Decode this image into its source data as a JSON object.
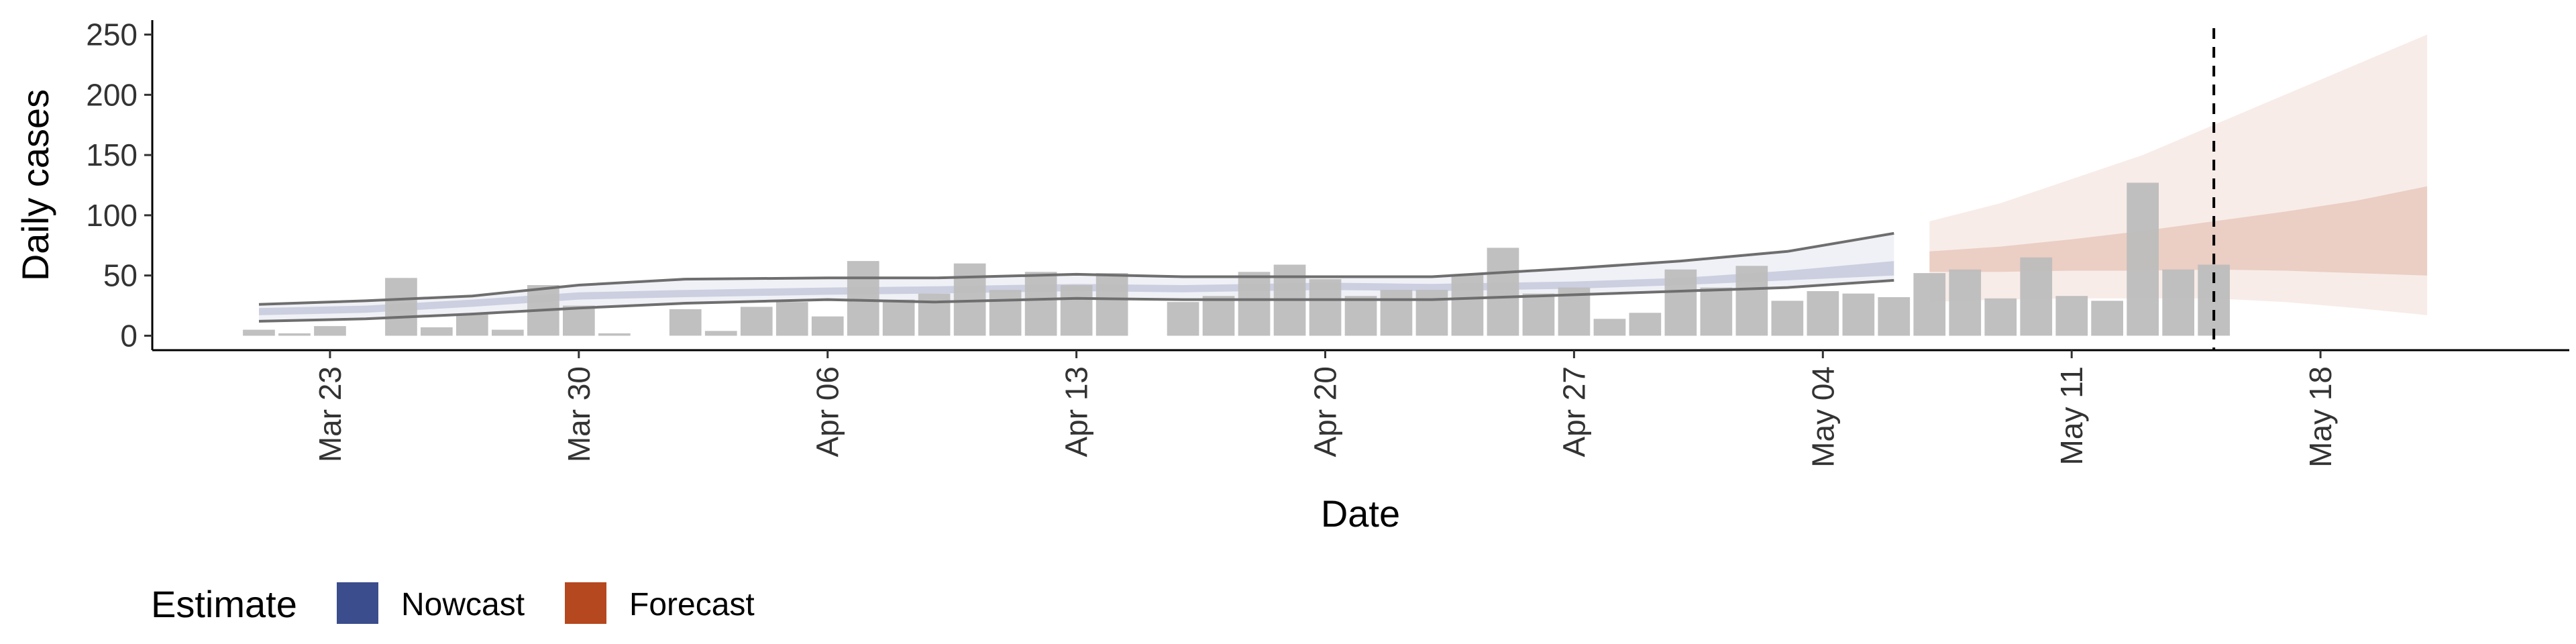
{
  "chart_data": {
    "type": "bar",
    "xlabel": "Date",
    "ylabel": "Daily cases",
    "ylim": [
      -12,
      262
    ],
    "yticks": [
      0,
      50,
      100,
      150,
      200,
      250
    ],
    "xlim": [
      "2020-03-18",
      "2020-05-25"
    ],
    "xticks": [
      {
        "date": "2020-03-23",
        "label": "Mar 23"
      },
      {
        "date": "2020-03-30",
        "label": "Mar 30"
      },
      {
        "date": "2020-04-06",
        "label": "Apr 06"
      },
      {
        "date": "2020-04-13",
        "label": "Apr 13"
      },
      {
        "date": "2020-04-20",
        "label": "Apr 20"
      },
      {
        "date": "2020-04-27",
        "label": "Apr 27"
      },
      {
        "date": "2020-05-04",
        "label": "May 04"
      },
      {
        "date": "2020-05-11",
        "label": "May 11"
      },
      {
        "date": "2020-05-18",
        "label": "May 18"
      }
    ],
    "bar_color": "#bdbdbd",
    "observed": {
      "dates": [
        "2020-03-21",
        "2020-03-22",
        "2020-03-23",
        "2020-03-24",
        "2020-03-25",
        "2020-03-26",
        "2020-03-27",
        "2020-03-28",
        "2020-03-29",
        "2020-03-30",
        "2020-03-31",
        "2020-04-01",
        "2020-04-02",
        "2020-04-03",
        "2020-04-04",
        "2020-04-05",
        "2020-04-06",
        "2020-04-07",
        "2020-04-08",
        "2020-04-09",
        "2020-04-10",
        "2020-04-11",
        "2020-04-12",
        "2020-04-13",
        "2020-04-14",
        "2020-04-15",
        "2020-04-16",
        "2020-04-17",
        "2020-04-18",
        "2020-04-19",
        "2020-04-20",
        "2020-04-21",
        "2020-04-22",
        "2020-04-23",
        "2020-04-24",
        "2020-04-25",
        "2020-04-26",
        "2020-04-27",
        "2020-04-28",
        "2020-04-29",
        "2020-04-30",
        "2020-05-01",
        "2020-05-02",
        "2020-05-03",
        "2020-05-04",
        "2020-05-05",
        "2020-05-06",
        "2020-05-07",
        "2020-05-08",
        "2020-05-09",
        "2020-05-10",
        "2020-05-11",
        "2020-05-12",
        "2020-05-13",
        "2020-05-14",
        "2020-05-15"
      ],
      "values": [
        5,
        2,
        8,
        0,
        48,
        7,
        18,
        5,
        42,
        25,
        2,
        0,
        22,
        4,
        24,
        28,
        16,
        62,
        30,
        35,
        60,
        38,
        53,
        42,
        52,
        0,
        28,
        33,
        53,
        59,
        47,
        33,
        38,
        38,
        51,
        73,
        35,
        40,
        14,
        19,
        55,
        40,
        58,
        29,
        37,
        35,
        32,
        52,
        55,
        31,
        65,
        33,
        29,
        127,
        55,
        59
      ]
    },
    "nowcast": {
      "name": "Nowcast",
      "color": "#3b4d8c",
      "dates": [
        "2020-03-21",
        "2020-03-24",
        "2020-03-27",
        "2020-03-30",
        "2020-04-02",
        "2020-04-06",
        "2020-04-09",
        "2020-04-13",
        "2020-04-16",
        "2020-04-20",
        "2020-04-23",
        "2020-04-27",
        "2020-04-30",
        "2020-05-03",
        "2020-05-06"
      ],
      "median": [
        20,
        22,
        27,
        33,
        35,
        37,
        38,
        40,
        39,
        41,
        40,
        42,
        45,
        50,
        56
      ],
      "inner_lower": [
        17,
        19,
        24,
        30,
        32,
        34,
        35,
        37,
        36,
        38,
        37,
        39,
        42,
        46,
        50
      ],
      "inner_upper": [
        23,
        25,
        30,
        36,
        38,
        40,
        41,
        43,
        42,
        44,
        43,
        45,
        48,
        54,
        62
      ],
      "outer_lower": [
        12,
        14,
        18,
        23,
        27,
        30,
        28,
        31,
        30,
        30,
        30,
        34,
        37,
        40,
        46
      ],
      "outer_upper": [
        26,
        29,
        33,
        42,
        47,
        48,
        48,
        51,
        49,
        49,
        49,
        56,
        62,
        70,
        85
      ]
    },
    "forecast": {
      "name": "Forecast",
      "color": "#b5481f",
      "dates": [
        "2020-05-07",
        "2020-05-09",
        "2020-05-11",
        "2020-05-13",
        "2020-05-15",
        "2020-05-17",
        "2020-05-19",
        "2020-05-21"
      ],
      "inner_lower": [
        53,
        53,
        54,
        54,
        55,
        54,
        52,
        50
      ],
      "inner_upper": [
        70,
        74,
        80,
        87,
        95,
        103,
        112,
        124
      ],
      "outer_lower": [
        28,
        30,
        31,
        31,
        31,
        28,
        23,
        17
      ],
      "outer_upper": [
        95,
        110,
        130,
        150,
        175,
        200,
        225,
        250
      ]
    },
    "vline": "2020-05-15",
    "legend": {
      "title": "Estimate",
      "position": "bottom-left",
      "items": [
        {
          "label": "Nowcast",
          "color": "#3b4d8c"
        },
        {
          "label": "Forecast",
          "color": "#b5481f"
        }
      ]
    }
  }
}
